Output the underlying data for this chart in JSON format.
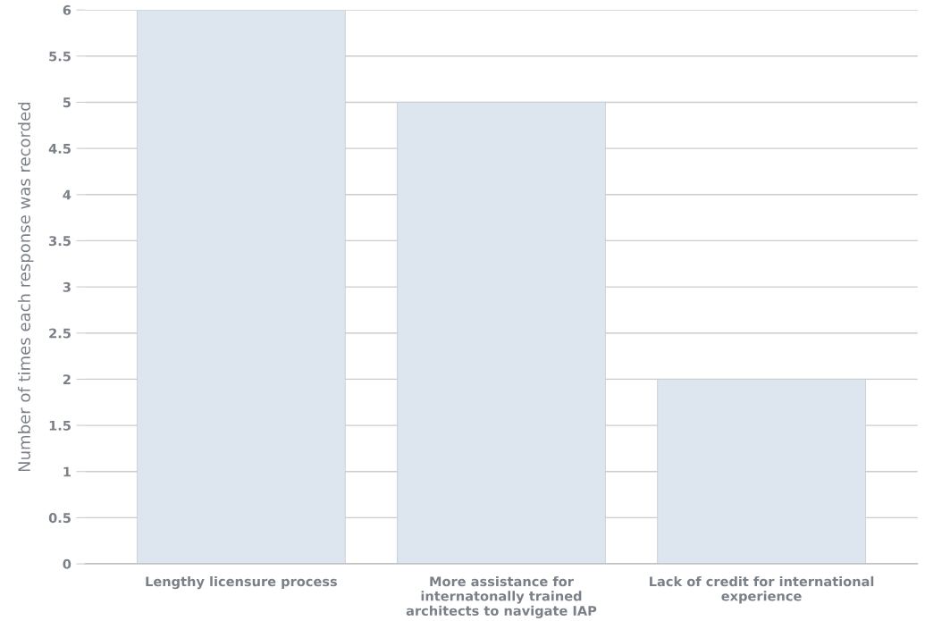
{
  "chart_data": {
    "type": "bar",
    "categories": [
      "Lengthy licensure process",
      "More assistance for\ninternatonally trained\narchitects to navigate IAP",
      "Lack of credit for international\nexperience"
    ],
    "values": [
      6,
      5,
      2
    ],
    "color": "#dde6ef",
    "ylabel": "Number of times each response was recorded",
    "ylim": [
      0,
      6
    ],
    "yticks": [
      0,
      0.5,
      1,
      1.5,
      2,
      2.5,
      3,
      3.5,
      4,
      4.5,
      5,
      5.5,
      6
    ],
    "grid": "y"
  }
}
